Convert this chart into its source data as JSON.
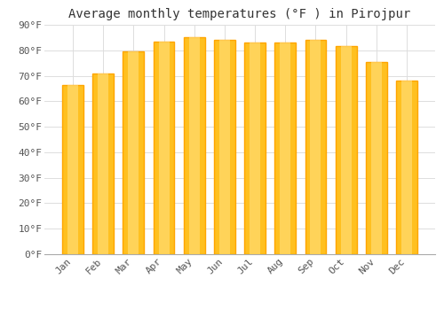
{
  "title": "Average monthly temperatures (°F ) in Pirojpur",
  "months": [
    "Jan",
    "Feb",
    "Mar",
    "Apr",
    "May",
    "Jun",
    "Jul",
    "Aug",
    "Sep",
    "Oct",
    "Nov",
    "Dec"
  ],
  "values": [
    66.5,
    71.0,
    79.5,
    83.5,
    85.0,
    84.0,
    83.0,
    83.0,
    84.0,
    81.5,
    75.5,
    68.0
  ],
  "bar_color_face": "#FFC020",
  "bar_color_edge": "#FFA500",
  "background_color": "#FFFFFF",
  "grid_color": "#DDDDDD",
  "ylim": [
    0,
    90
  ],
  "yticks": [
    0,
    10,
    20,
    30,
    40,
    50,
    60,
    70,
    80,
    90
  ],
  "title_fontsize": 10,
  "tick_fontsize": 8,
  "font_family": "monospace"
}
